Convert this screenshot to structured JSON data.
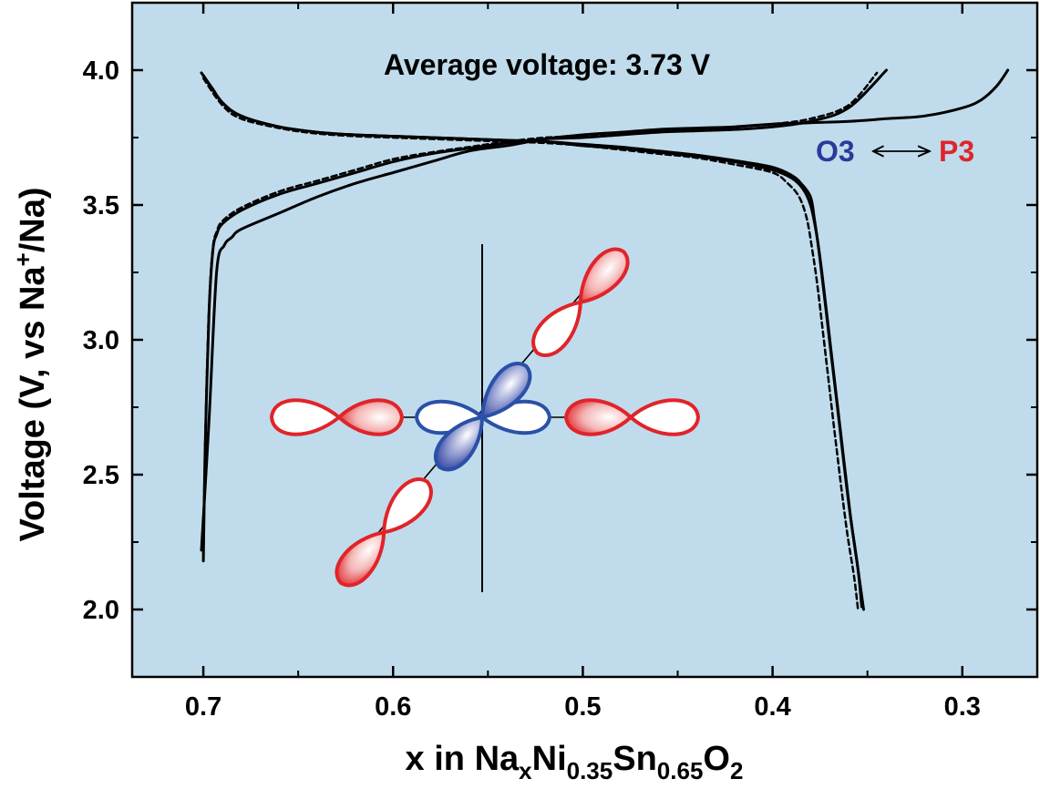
{
  "chart_data": {
    "type": "line",
    "title": "",
    "annotation": "Average voltage: 3.73 V",
    "xlabel": {
      "base": "x in Na",
      "parts": [
        [
          "x",
          "sub"
        ],
        [
          "Ni",
          ""
        ],
        [
          "0.35",
          "sub"
        ],
        [
          "Sn",
          ""
        ],
        [
          "0.65",
          "sub"
        ],
        [
          "O",
          ""
        ],
        [
          "2",
          "sub"
        ]
      ]
    },
    "ylabel": {
      "prefix": "Voltage (V, vs Na",
      "sup": "+",
      "suffix": "/Na)"
    },
    "x_reversed": true,
    "xlim": [
      0.7375,
      0.2605
    ],
    "ylim": [
      1.75,
      4.25
    ],
    "xticks": [
      "0.7",
      "0.6",
      "0.5",
      "0.4",
      "0.3"
    ],
    "xtick_values": [
      0.7,
      0.6,
      0.5,
      0.4,
      0.3
    ],
    "yticks": [
      "2.0",
      "2.5",
      "3.0",
      "3.5",
      "4.0"
    ],
    "ytick_values": [
      2.0,
      2.5,
      3.0,
      3.5,
      4.0
    ],
    "legend_annotation": {
      "left": "O3",
      "right": "P3",
      "left_color": "#2a3a9a",
      "right_color": "#e0242a"
    },
    "colors": {
      "background": "#c0dcec",
      "line": "#000000",
      "orbital_red": "#e0242a",
      "orbital_blue": "#2a3a9a"
    },
    "series": [
      {
        "style": "solid",
        "x": [
          0.7,
          0.699,
          0.697,
          0.695,
          0.693,
          0.69,
          0.68,
          0.66,
          0.64,
          0.62,
          0.6,
          0.58,
          0.56,
          0.54,
          0.52,
          0.5,
          0.48,
          0.46,
          0.44,
          0.42,
          0.4,
          0.38,
          0.36,
          0.34
        ],
        "y": [
          2.18,
          2.6,
          3.1,
          3.33,
          3.39,
          3.43,
          3.48,
          3.54,
          3.58,
          3.62,
          3.66,
          3.69,
          3.71,
          3.73,
          3.745,
          3.75,
          3.76,
          3.77,
          3.775,
          3.78,
          3.79,
          3.81,
          3.86,
          4.0
        ]
      },
      {
        "style": "dashed",
        "x": [
          0.7,
          0.699,
          0.697,
          0.695,
          0.693,
          0.69,
          0.68,
          0.66,
          0.64,
          0.62,
          0.6,
          0.58,
          0.56,
          0.54,
          0.52,
          0.5,
          0.48,
          0.46,
          0.44,
          0.42,
          0.4,
          0.38,
          0.36,
          0.345
        ],
        "y": [
          2.2,
          2.62,
          3.12,
          3.34,
          3.4,
          3.44,
          3.49,
          3.55,
          3.59,
          3.63,
          3.67,
          3.695,
          3.715,
          3.735,
          3.75,
          3.755,
          3.765,
          3.775,
          3.78,
          3.79,
          3.8,
          3.82,
          3.87,
          3.99
        ]
      },
      {
        "style": "solid",
        "x": [
          0.701,
          0.697,
          0.693,
          0.689,
          0.685,
          0.68,
          0.66,
          0.64,
          0.62,
          0.6,
          0.58,
          0.56,
          0.54,
          0.52,
          0.5,
          0.48,
          0.46,
          0.44,
          0.42,
          0.4,
          0.38,
          0.36,
          0.34,
          0.32,
          0.3,
          0.29,
          0.282,
          0.276
        ],
        "y": [
          2.22,
          2.7,
          3.25,
          3.35,
          3.38,
          3.41,
          3.47,
          3.53,
          3.58,
          3.62,
          3.66,
          3.7,
          3.72,
          3.745,
          3.76,
          3.77,
          3.78,
          3.785,
          3.79,
          3.8,
          3.805,
          3.81,
          3.82,
          3.83,
          3.86,
          3.89,
          3.94,
          4.0
        ]
      },
      {
        "style": "solid",
        "x": [
          0.701,
          0.695,
          0.69,
          0.68,
          0.66,
          0.64,
          0.62,
          0.6,
          0.58,
          0.56,
          0.54,
          0.52,
          0.5,
          0.48,
          0.46,
          0.44,
          0.42,
          0.4,
          0.39,
          0.385,
          0.38,
          0.378,
          0.375,
          0.37,
          0.365,
          0.36,
          0.356,
          0.352
        ],
        "y": [
          3.99,
          3.93,
          3.88,
          3.83,
          3.79,
          3.77,
          3.76,
          3.755,
          3.75,
          3.745,
          3.74,
          3.735,
          3.725,
          3.715,
          3.7,
          3.685,
          3.665,
          3.64,
          3.61,
          3.58,
          3.53,
          3.45,
          3.3,
          3.0,
          2.7,
          2.4,
          2.2,
          2.0
        ]
      },
      {
        "style": "solid",
        "x": [
          0.7,
          0.69,
          0.68,
          0.66,
          0.64,
          0.62,
          0.6,
          0.58,
          0.56,
          0.54,
          0.52,
          0.5,
          0.48,
          0.46,
          0.44,
          0.42,
          0.4,
          0.39,
          0.384,
          0.38,
          0.377,
          0.374,
          0.369,
          0.364,
          0.359,
          0.355,
          0.353
        ],
        "y": [
          3.98,
          3.88,
          3.83,
          3.79,
          3.77,
          3.76,
          3.755,
          3.75,
          3.745,
          3.74,
          3.735,
          3.72,
          3.71,
          3.695,
          3.68,
          3.66,
          3.63,
          3.6,
          3.56,
          3.5,
          3.4,
          3.25,
          2.95,
          2.65,
          2.35,
          2.15,
          2.01
        ]
      },
      {
        "style": "dashed",
        "x": [
          0.7,
          0.69,
          0.68,
          0.66,
          0.64,
          0.62,
          0.6,
          0.58,
          0.56,
          0.54,
          0.52,
          0.5,
          0.48,
          0.46,
          0.44,
          0.42,
          0.4,
          0.392,
          0.386,
          0.382,
          0.379,
          0.376,
          0.371,
          0.366,
          0.361,
          0.357,
          0.355
        ],
        "y": [
          3.97,
          3.87,
          3.82,
          3.785,
          3.765,
          3.755,
          3.75,
          3.745,
          3.74,
          3.735,
          3.73,
          3.72,
          3.705,
          3.69,
          3.675,
          3.65,
          3.62,
          3.58,
          3.53,
          3.45,
          3.33,
          3.18,
          2.88,
          2.58,
          2.3,
          2.12,
          2.0
        ]
      }
    ]
  }
}
